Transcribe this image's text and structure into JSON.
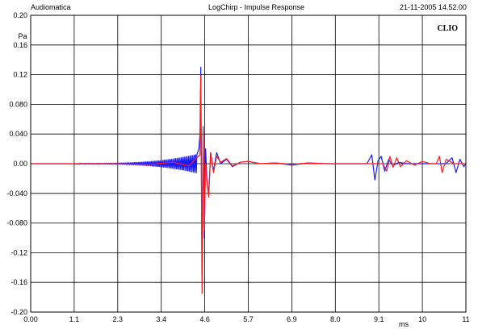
{
  "header": {
    "left": "Audiomatica",
    "center": "LogChirp - Impulse Response",
    "right": "21-11-2005 14.52.00"
  },
  "brand_label": "CLIO",
  "colors": {
    "series_a": "#1a1aff",
    "series_b": "#ff1a1a",
    "grid": "#000000"
  },
  "chart_data": {
    "type": "line",
    "title": "LogChirp - Impulse Response",
    "xlabel": "ms",
    "ylabel": "Pa",
    "xlim": [
      0.0,
      11.0
    ],
    "ylim": [
      -0.2,
      0.2
    ],
    "grid": true,
    "legend": "none",
    "x_tick_labels": [
      "0.00",
      "1.1",
      "2.3",
      "3.4",
      "4.6",
      "5.7",
      "6.9",
      "8.0",
      "9.1",
      "10",
      "11"
    ],
    "y_tick_labels": [
      "0.20",
      "0.16",
      "0.12",
      "0.080",
      "0.040",
      "0.00",
      "-0.040",
      "-0.080",
      "-0.12",
      "-0.16",
      "-0.20"
    ],
    "series": [
      {
        "color": "#1a1aff",
        "x": [
          0.0,
          1.0,
          2.0,
          2.6,
          3.0,
          3.3,
          3.6,
          3.9,
          4.1,
          4.2,
          4.25,
          4.28,
          4.3,
          4.33,
          4.36,
          4.39,
          4.42,
          4.46,
          4.5,
          4.55,
          4.62,
          4.7,
          4.8,
          4.95,
          5.1,
          5.3,
          5.5,
          5.8,
          6.2,
          6.6,
          7.0,
          7.5,
          8.0,
          8.5,
          8.62,
          8.7,
          8.78,
          8.86,
          8.95,
          9.05,
          9.15,
          9.3,
          9.5,
          9.8,
          10.2,
          10.5,
          10.65,
          10.75,
          10.85,
          10.95,
          11.0
        ],
        "y": [
          0.0,
          0.0,
          0.0,
          0.001,
          0.002,
          0.003,
          0.004,
          0.006,
          0.008,
          0.012,
          0.02,
          0.04,
          0.13,
          -0.15,
          0.05,
          -0.1,
          0.02,
          -0.025,
          -0.04,
          0.015,
          -0.01,
          0.015,
          0.0,
          0.006,
          -0.004,
          0.002,
          0.003,
          0.0,
          0.001,
          -0.002,
          0.001,
          0.0,
          0.0,
          0.0,
          0.012,
          -0.022,
          0.004,
          0.01,
          -0.01,
          0.006,
          -0.003,
          0.002,
          0.0,
          0.0,
          0.0,
          0.0,
          0.008,
          -0.012,
          0.006,
          -0.004,
          0.0
        ],
        "envelope_peak_at_x": 4.2
      },
      {
        "color": "#ff1a1a",
        "x": [
          0.0,
          1.0,
          2.0,
          3.0,
          3.6,
          4.0,
          4.2,
          4.28,
          4.3,
          4.33,
          4.36,
          4.39,
          4.42,
          4.46,
          4.5,
          4.55,
          4.62,
          4.7,
          4.8,
          4.95,
          5.1,
          5.3,
          5.5,
          5.8,
          6.2,
          6.6,
          7.0,
          7.5,
          8.0,
          8.5,
          8.9,
          9.0,
          9.08,
          9.16,
          9.25,
          9.35,
          9.5,
          9.7,
          9.9,
          10.1,
          10.25,
          10.33,
          10.4,
          10.5,
          10.7,
          10.85,
          11.0
        ],
        "y": [
          0.0,
          0.0,
          0.0,
          -0.001,
          0.002,
          -0.003,
          0.008,
          0.012,
          0.118,
          -0.175,
          0.05,
          -0.09,
          0.0,
          -0.025,
          -0.045,
          0.015,
          -0.012,
          0.01,
          0.002,
          0.007,
          -0.003,
          0.002,
          0.003,
          0.0,
          0.001,
          -0.001,
          0.001,
          0.0,
          0.0,
          0.0,
          0.0,
          -0.01,
          0.01,
          -0.005,
          0.008,
          -0.004,
          0.004,
          -0.002,
          0.003,
          0.0,
          0.0,
          0.01,
          -0.012,
          0.006,
          0.0,
          0.0,
          0.0
        ]
      }
    ]
  }
}
